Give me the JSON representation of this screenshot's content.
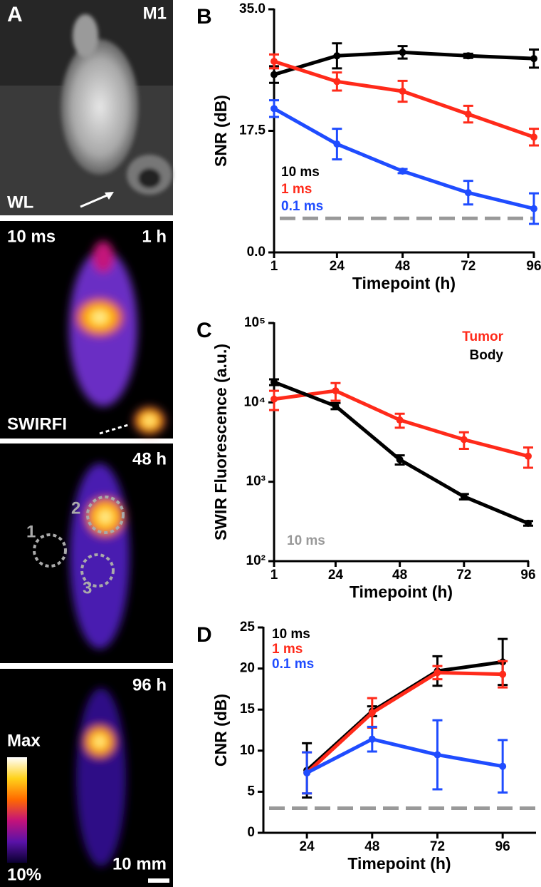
{
  "images": {
    "panel_label": "A",
    "mouse_id": "M1",
    "wl_label": "WL",
    "exposure": "10 ms",
    "times": [
      "1 h",
      "48 h",
      "96 h"
    ],
    "modality": "SWIRFI",
    "rois": [
      "1",
      "2",
      "3"
    ],
    "colorbar_max": "Max",
    "colorbar_min": "10%",
    "scale_bar": "10 mm"
  },
  "chart_data": [
    {
      "type": "line",
      "panel_label": "B",
      "x_label": "Timepoint (h)",
      "y_label": "SNR (dB)",
      "x": [
        1,
        24,
        48,
        72,
        96
      ],
      "xlim": [
        1,
        96
      ],
      "xticks": [
        1,
        24,
        48,
        72,
        96
      ],
      "ylim": [
        0,
        35
      ],
      "yticks": [
        {
          "value": 0,
          "label": "0.0"
        },
        {
          "value": 17.5,
          "label": "17.5"
        },
        {
          "value": 35,
          "label": "35.0"
        }
      ],
      "log_y": false,
      "legend": "lower-left",
      "reference_line": {
        "value": 4.9,
        "color": "#999999"
      },
      "series": [
        {
          "name": "10 ms",
          "color": "#000000",
          "values": [
            25.6,
            28.3,
            28.8,
            28.3,
            27.9
          ],
          "errors": [
            1.2,
            1.8,
            0.9,
            0.3,
            1.3
          ]
        },
        {
          "name": "1 ms",
          "color": "#ff2a1a",
          "values": [
            27.5,
            24.6,
            23.2,
            19.9,
            16.6
          ],
          "errors": [
            1.0,
            1.3,
            1.5,
            1.2,
            1.2
          ]
        },
        {
          "name": "0.1 ms",
          "color": "#1f4cff",
          "values": [
            20.7,
            15.6,
            11.7,
            8.6,
            6.3
          ],
          "errors": [
            1.2,
            2.2,
            0.3,
            1.7,
            2.2
          ]
        }
      ]
    },
    {
      "type": "line",
      "panel_label": "C",
      "x_label": "Timepoint (h)",
      "y_label": "SWIR Fluorescence (a.u.)",
      "x": [
        1,
        24,
        48,
        72,
        96
      ],
      "xlim": [
        1,
        96
      ],
      "xticks": [
        1,
        24,
        48,
        72,
        96
      ],
      "ylim": [
        100,
        100000
      ],
      "yticks": [
        {
          "value": 100,
          "label": "10²"
        },
        {
          "value": 1000,
          "label": "10³"
        },
        {
          "value": 10000,
          "label": "10⁴"
        },
        {
          "value": 100000,
          "label": "10⁵"
        }
      ],
      "log_y": true,
      "legend": "upper-right",
      "annotation": {
        "text": "10 ms",
        "color": "#999999"
      },
      "series": [
        {
          "name": "Tumor",
          "color": "#ff2a1a",
          "values": [
            11000,
            14000,
            6000,
            3400,
            2100
          ],
          "errors": [
            3000,
            3500,
            1200,
            800,
            600
          ]
        },
        {
          "name": "Body",
          "color": "#000000",
          "values": [
            18000,
            9000,
            1900,
            650,
            300
          ],
          "errors": [
            1500,
            800,
            250,
            50,
            20
          ]
        }
      ]
    },
    {
      "type": "line",
      "panel_label": "D",
      "x_label": "Timepoint (h)",
      "y_label": "CNR (dB)",
      "x": [
        24,
        48,
        72,
        96
      ],
      "xlim": [
        8,
        108
      ],
      "xticks": [
        24,
        48,
        72,
        96
      ],
      "ylim": [
        0,
        25
      ],
      "yticks": [
        0,
        5,
        10,
        15,
        20,
        25
      ],
      "log_y": false,
      "legend": "upper-left",
      "reference_line": {
        "value": 3,
        "color": "#999999"
      },
      "series": [
        {
          "name": "10 ms",
          "color": "#000000",
          "values": [
            7.6,
            14.8,
            19.7,
            20.8
          ],
          "errors": [
            3.3,
            0.6,
            1.8,
            2.8
          ]
        },
        {
          "name": "1 ms",
          "color": "#ff2a1a",
          "values": [
            7.3,
            14.6,
            19.5,
            19.3
          ],
          "errors": [
            2.5,
            1.8,
            0.8,
            1.6
          ]
        },
        {
          "name": "0.1 ms",
          "color": "#1f4cff",
          "values": [
            7.3,
            11.4,
            9.5,
            8.1
          ],
          "errors": [
            2.5,
            1.5,
            4.2,
            3.2
          ]
        }
      ]
    }
  ]
}
